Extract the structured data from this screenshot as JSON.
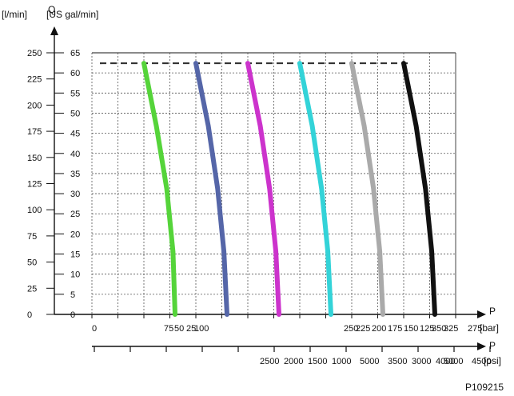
{
  "chart_data": {
    "type": "line",
    "ylabel_lmin": "[l/min]",
    "ylabel_usgal": "[US gal/min]",
    "q_symbol": "Q",
    "p_symbol": "P",
    "p_symbol_psi": "P",
    "unit_bar": "[bar]",
    "unit_psi": "[psi]",
    "figure_id": "P109215",
    "yticks_lmin": [
      "0",
      "25",
      "50",
      "75",
      "100",
      "125",
      "150",
      "175",
      "200",
      "225",
      "250"
    ],
    "yticks_usgal": [
      "0",
      "5",
      "10",
      "15",
      "20",
      "25",
      "30",
      "35",
      "40",
      "45",
      "50",
      "55",
      "60",
      "65"
    ],
    "xticks_bar": [
      "0",
      "75",
      "50",
      "25",
      "100",
      "250",
      "225",
      "200",
      "175",
      "150",
      "125",
      "350",
      "325",
      "275"
    ],
    "xticks_psi": [
      "2500",
      "2000",
      "1500",
      "1000",
      "5000",
      "3500",
      "3000",
      "4000",
      "5000",
      "4500"
    ],
    "max_flow_lmin": 240,
    "series": [
      {
        "color": "#55d43a",
        "points": [
          [
            50,
            240
          ],
          [
            62,
            180
          ],
          [
            72,
            120
          ],
          [
            78,
            60
          ],
          [
            80,
            0
          ]
        ]
      },
      {
        "color": "#5566a8",
        "points": [
          [
            100,
            240
          ],
          [
            112,
            180
          ],
          [
            121,
            120
          ],
          [
            127,
            60
          ],
          [
            130,
            0
          ]
        ]
      },
      {
        "color": "#cc33cc",
        "points": [
          [
            150,
            240
          ],
          [
            162,
            180
          ],
          [
            171,
            120
          ],
          [
            177,
            60
          ],
          [
            180,
            0
          ]
        ]
      },
      {
        "color": "#33d3d8",
        "points": [
          [
            200,
            240
          ],
          [
            212,
            180
          ],
          [
            221,
            120
          ],
          [
            227,
            60
          ],
          [
            230,
            0
          ]
        ]
      },
      {
        "color": "#aaaaaa",
        "points": [
          [
            250,
            240
          ],
          [
            262,
            180
          ],
          [
            271,
            120
          ],
          [
            277,
            60
          ],
          [
            280,
            0
          ]
        ]
      },
      {
        "color": "#111111",
        "points": [
          [
            300,
            240
          ],
          [
            312,
            180
          ],
          [
            321,
            120
          ],
          [
            327,
            60
          ],
          [
            330,
            0
          ]
        ]
      }
    ]
  }
}
